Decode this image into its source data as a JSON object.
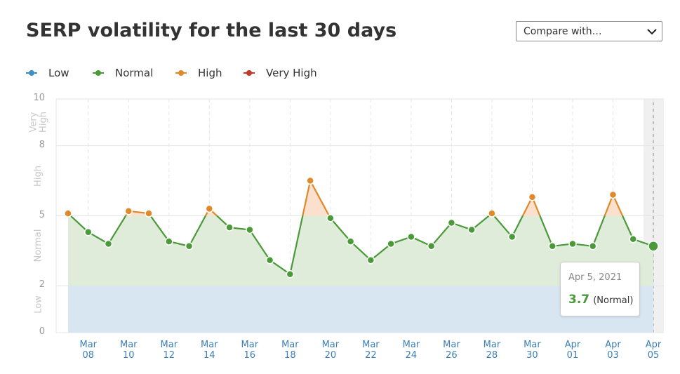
{
  "chart_data": {
    "type": "line",
    "title": "SERP volatility for the last 30 days",
    "categories": [
      null,
      "Mar 08",
      null,
      "Mar 10",
      null,
      "Mar 12",
      null,
      "Mar 14",
      null,
      "Mar 16",
      null,
      "Mar 18",
      null,
      "Mar 20",
      null,
      "Mar 22",
      null,
      "Mar 24",
      null,
      "Mar 26",
      null,
      "Mar 28",
      null,
      "Mar 30",
      null,
      "Apr 01",
      null,
      "Apr 03",
      null,
      "Apr 05"
    ],
    "values": [
      5.1,
      4.3,
      3.8,
      5.2,
      5.1,
      3.9,
      3.7,
      5.3,
      4.5,
      4.4,
      3.1,
      2.5,
      6.5,
      4.9,
      3.9,
      3.1,
      3.8,
      4.1,
      3.7,
      4.7,
      4.4,
      5.1,
      4.1,
      5.8,
      3.7,
      3.8,
      3.7,
      5.9,
      4.0,
      3.7
    ],
    "bands": [
      {
        "name": "Low",
        "from": 0,
        "to": 2,
        "color": "#3d8fc6",
        "fill": "#d7e6f1"
      },
      {
        "name": "Normal",
        "from": 2,
        "to": 5,
        "color": "#4a9a3a",
        "fill": "#dfecd9"
      },
      {
        "name": "High",
        "from": 5,
        "to": 8,
        "color": "#e0892a",
        "fill": "#fbe1cd"
      },
      {
        "name": "Very High",
        "from": 8,
        "to": 10,
        "color": "#c0392b",
        "fill": "#f6d5d1"
      }
    ],
    "ylim": [
      0,
      10
    ],
    "yticks": [
      0,
      2,
      5,
      8,
      10
    ],
    "grid": true,
    "tooltip": {
      "date": "Apr 5, 2021",
      "value": 3.7,
      "label": "(Normal)"
    }
  },
  "controls": {
    "compare": "Compare with…"
  }
}
